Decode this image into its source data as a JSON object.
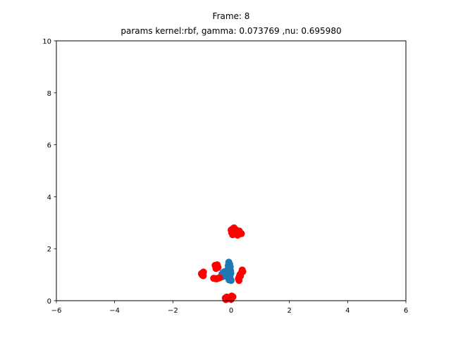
{
  "chart_data": {
    "type": "scatter",
    "title_line1": "Frame: 8",
    "title_line2": "params kernel:rbf, gamma: 0.073769 ,nu: 0.695980",
    "xlim": [
      -6,
      6
    ],
    "ylim": [
      0,
      10
    ],
    "x_ticks": [
      -6,
      -4,
      -2,
      0,
      2,
      4,
      6
    ],
    "x_tick_labels": [
      "−6",
      "−4",
      "−2",
      "0",
      "2",
      "4",
      "6"
    ],
    "y_ticks": [
      0,
      2,
      4,
      6,
      8,
      10
    ],
    "y_tick_labels": [
      "0",
      "2",
      "4",
      "6",
      "8",
      "10"
    ],
    "grid": false,
    "series": [
      {
        "color": "#1f77b4",
        "points": [
          [
            -0.08,
            1.48
          ],
          [
            -0.05,
            1.4
          ],
          [
            -0.1,
            1.35
          ],
          [
            -0.03,
            1.3
          ],
          [
            -0.06,
            1.22
          ],
          [
            -0.12,
            1.18
          ],
          [
            -0.02,
            1.15
          ],
          [
            -0.08,
            1.1
          ],
          [
            -0.15,
            1.06
          ],
          [
            -0.2,
            1.02
          ],
          [
            -0.28,
            1.08
          ],
          [
            -0.32,
            1.02
          ],
          [
            -0.25,
            0.98
          ],
          [
            -0.18,
            0.95
          ],
          [
            -0.3,
            0.92
          ],
          [
            -0.1,
            0.9
          ],
          [
            -0.05,
            0.86
          ],
          [
            -0.02,
            0.82
          ],
          [
            -0.07,
            0.8
          ],
          [
            0.0,
            0.78
          ],
          [
            -0.04,
            0.96
          ],
          [
            -0.14,
            1.0
          ],
          [
            -0.22,
            1.12
          ],
          [
            -0.01,
            1.05
          ]
        ]
      },
      {
        "color": "#ff0000",
        "points": [
          [
            0.0,
            2.72
          ],
          [
            0.05,
            2.76
          ],
          [
            0.1,
            2.8
          ],
          [
            0.15,
            2.74
          ],
          [
            0.02,
            2.62
          ],
          [
            0.08,
            2.58
          ],
          [
            0.12,
            2.66
          ],
          [
            0.2,
            2.6
          ],
          [
            0.25,
            2.55
          ],
          [
            0.3,
            2.62
          ],
          [
            0.35,
            2.58
          ],
          [
            0.28,
            2.68
          ],
          [
            0.18,
            2.7
          ],
          [
            0.05,
            2.54
          ],
          [
            0.22,
            2.52
          ],
          [
            -1.0,
            1.0
          ],
          [
            -0.98,
            1.06
          ],
          [
            -0.95,
            1.1
          ],
          [
            -1.02,
            1.04
          ],
          [
            -0.96,
            0.96
          ],
          [
            -0.55,
            1.36
          ],
          [
            -0.5,
            1.32
          ],
          [
            -0.45,
            1.28
          ],
          [
            -0.52,
            1.24
          ],
          [
            -0.48,
            1.38
          ],
          [
            -0.6,
            0.86
          ],
          [
            -0.55,
            0.85
          ],
          [
            -0.5,
            0.84
          ],
          [
            -0.45,
            0.86
          ],
          [
            -0.4,
            0.88
          ],
          [
            0.4,
            1.12
          ],
          [
            0.38,
            1.18
          ],
          [
            0.35,
            1.08
          ],
          [
            0.3,
            1.0
          ],
          [
            0.28,
            0.92
          ],
          [
            0.25,
            0.85
          ],
          [
            0.27,
            0.78
          ],
          [
            0.32,
            0.95
          ],
          [
            -0.2,
            0.1
          ],
          [
            -0.15,
            0.14
          ],
          [
            -0.1,
            0.08
          ],
          [
            -0.05,
            0.12
          ],
          [
            0.02,
            0.18
          ],
          [
            0.06,
            0.15
          ],
          [
            -0.18,
            0.04
          ],
          [
            0.0,
            0.05
          ]
        ]
      }
    ]
  }
}
